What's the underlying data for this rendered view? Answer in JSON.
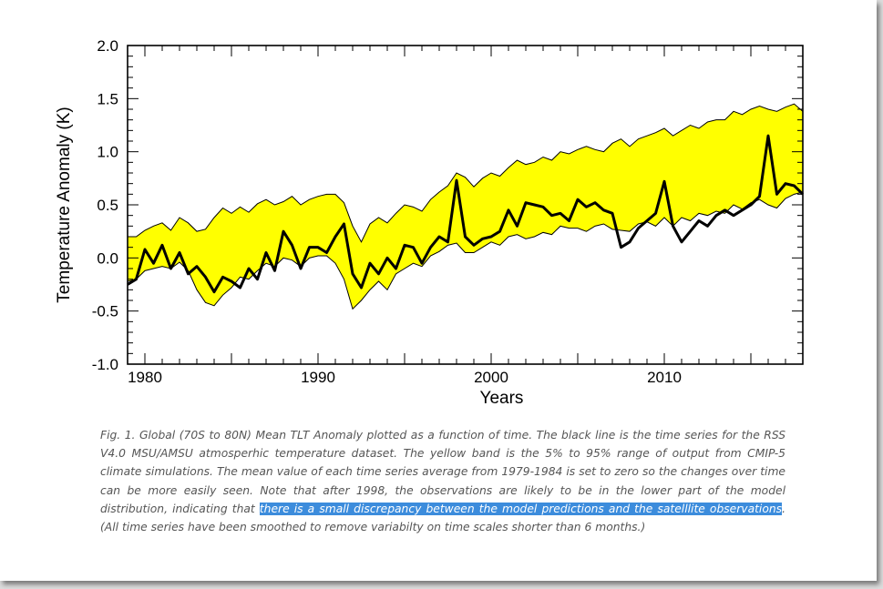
{
  "colors": {
    "band_fill": "#ffff00",
    "band_edge": "#000000",
    "observation_line": "#000000",
    "highlight": "#3c8cdc"
  },
  "caption": {
    "part1": "Fig. 1.  Global (70S to 80N) Mean TLT Anomaly plotted as a function of time.  The black line is the time series for the  RSS V4.0 MSU/AMSU atmosperhic temperature dataset.  The yellow band is the 5% to 95% range of output from CMIP-5 climate simulations.  The mean value of each time series average from 1979-1984 is set to zero so the changes over time can be more easily seen.  Note that after 1998, the observations are likely to be in the lower part of the model distribution, indicating that ",
    "highlight": "there is a small discrepancy between the model predictions and the satelllite observations",
    "part2": ".(All time series have been smoothed to remove variabilty on time scales shorter than 6 months.)"
  },
  "chart_data": {
    "type": "line",
    "xlabel": "Years",
    "ylabel": "Temperature Anomaly (K)",
    "xlim": [
      1979,
      2018
    ],
    "ylim": [
      -1.0,
      2.0
    ],
    "xticks": [
      "1980",
      "1990",
      "2000",
      "2010"
    ],
    "xtick_values": [
      1980,
      1990,
      2000,
      2010
    ],
    "yticks": [
      "-1.0",
      "-0.5",
      "0.0",
      "0.5",
      "1.0",
      "1.5",
      "2.0"
    ],
    "ytick_values": [
      -1.0,
      -0.5,
      0.0,
      0.5,
      1.0,
      1.5,
      2.0
    ],
    "grid": false,
    "series": [
      {
        "role": "band_upper",
        "x": [
          1979.0,
          1979.5,
          1980.0,
          1980.5,
          1981.0,
          1981.5,
          1982.0,
          1982.5,
          1983.0,
          1983.5,
          1984.0,
          1984.5,
          1985.0,
          1985.5,
          1986.0,
          1986.5,
          1987.0,
          1987.5,
          1988.0,
          1988.5,
          1989.0,
          1989.5,
          1990.0,
          1990.5,
          1991.0,
          1991.5,
          1992.0,
          1992.5,
          1993.0,
          1993.5,
          1994.0,
          1994.5,
          1995.0,
          1995.5,
          1996.0,
          1996.5,
          1997.0,
          1997.5,
          1998.0,
          1998.5,
          1999.0,
          1999.5,
          2000.0,
          2000.5,
          2001.0,
          2001.5,
          2002.0,
          2002.5,
          2003.0,
          2003.5,
          2004.0,
          2004.5,
          2005.0,
          2005.5,
          2006.0,
          2006.5,
          2007.0,
          2007.5,
          2008.0,
          2008.5,
          2009.0,
          2009.5,
          2010.0,
          2010.5,
          2011.0,
          2011.5,
          2012.0,
          2012.5,
          2013.0,
          2013.5,
          2014.0,
          2014.5,
          2015.0,
          2015.5,
          2016.0,
          2016.5,
          2017.0,
          2017.5,
          2018.0
        ],
        "y": [
          0.2,
          0.2,
          0.26,
          0.3,
          0.33,
          0.26,
          0.38,
          0.33,
          0.25,
          0.27,
          0.38,
          0.47,
          0.42,
          0.48,
          0.43,
          0.51,
          0.55,
          0.5,
          0.53,
          0.58,
          0.5,
          0.55,
          0.58,
          0.6,
          0.6,
          0.52,
          0.3,
          0.15,
          0.32,
          0.38,
          0.33,
          0.42,
          0.5,
          0.48,
          0.44,
          0.55,
          0.62,
          0.68,
          0.8,
          0.76,
          0.67,
          0.75,
          0.8,
          0.77,
          0.85,
          0.92,
          0.88,
          0.9,
          0.95,
          0.92,
          1.0,
          0.98,
          1.02,
          1.05,
          1.02,
          1.0,
          1.08,
          1.12,
          1.05,
          1.12,
          1.15,
          1.18,
          1.22,
          1.15,
          1.2,
          1.25,
          1.22,
          1.28,
          1.3,
          1.3,
          1.38,
          1.35,
          1.4,
          1.43,
          1.4,
          1.38,
          1.42,
          1.45,
          1.38
        ]
      },
      {
        "role": "band_lower",
        "x": [
          1979.0,
          1979.5,
          1980.0,
          1980.5,
          1981.0,
          1981.5,
          1982.0,
          1982.5,
          1983.0,
          1983.5,
          1984.0,
          1984.5,
          1985.0,
          1985.5,
          1986.0,
          1986.5,
          1987.0,
          1987.5,
          1988.0,
          1988.5,
          1989.0,
          1989.5,
          1990.0,
          1990.5,
          1991.0,
          1991.5,
          1992.0,
          1992.5,
          1993.0,
          1993.5,
          1994.0,
          1994.5,
          1995.0,
          1995.5,
          1996.0,
          1996.5,
          1997.0,
          1997.5,
          1998.0,
          1998.5,
          1999.0,
          1999.5,
          2000.0,
          2000.5,
          2001.0,
          2001.5,
          2002.0,
          2002.5,
          2003.0,
          2003.5,
          2004.0,
          2004.5,
          2005.0,
          2005.5,
          2006.0,
          2006.5,
          2007.0,
          2007.5,
          2008.0,
          2008.5,
          2009.0,
          2009.5,
          2010.0,
          2010.5,
          2011.0,
          2011.5,
          2012.0,
          2012.5,
          2013.0,
          2013.5,
          2014.0,
          2014.5,
          2015.0,
          2015.5,
          2016.0,
          2016.5,
          2017.0,
          2017.5,
          2018.0
        ],
        "y": [
          -0.22,
          -0.2,
          -0.12,
          -0.1,
          -0.08,
          -0.1,
          -0.04,
          -0.12,
          -0.3,
          -0.42,
          -0.45,
          -0.35,
          -0.28,
          -0.18,
          -0.2,
          -0.12,
          -0.05,
          -0.08,
          0.0,
          -0.02,
          -0.08,
          0.0,
          0.02,
          0.02,
          -0.05,
          -0.2,
          -0.48,
          -0.4,
          -0.3,
          -0.22,
          -0.3,
          -0.15,
          -0.1,
          -0.05,
          -0.08,
          0.02,
          0.06,
          0.12,
          0.14,
          0.05,
          0.05,
          0.1,
          0.15,
          0.12,
          0.2,
          0.22,
          0.18,
          0.2,
          0.24,
          0.22,
          0.3,
          0.28,
          0.28,
          0.25,
          0.3,
          0.32,
          0.27,
          0.26,
          0.25,
          0.32,
          0.34,
          0.3,
          0.38,
          0.3,
          0.38,
          0.35,
          0.42,
          0.4,
          0.44,
          0.42,
          0.5,
          0.46,
          0.52,
          0.55,
          0.5,
          0.47,
          0.56,
          0.6,
          0.62
        ]
      },
      {
        "role": "observation",
        "x": [
          1979.0,
          1979.5,
          1980.0,
          1980.5,
          1981.0,
          1981.5,
          1982.0,
          1982.5,
          1983.0,
          1983.5,
          1984.0,
          1984.5,
          1985.0,
          1985.5,
          1986.0,
          1986.5,
          1987.0,
          1987.5,
          1988.0,
          1988.5,
          1989.0,
          1989.5,
          1990.0,
          1990.5,
          1991.0,
          1991.5,
          1992.0,
          1992.5,
          1993.0,
          1993.5,
          1994.0,
          1994.5,
          1995.0,
          1995.5,
          1996.0,
          1996.5,
          1997.0,
          1997.5,
          1998.0,
          1998.5,
          1999.0,
          1999.5,
          2000.0,
          2000.5,
          2001.0,
          2001.5,
          2002.0,
          2002.5,
          2003.0,
          2003.5,
          2004.0,
          2004.5,
          2005.0,
          2005.5,
          2006.0,
          2006.5,
          2007.0,
          2007.5,
          2008.0,
          2008.5,
          2009.0,
          2009.5,
          2010.0,
          2010.5,
          2011.0,
          2011.5,
          2012.0,
          2012.5,
          2013.0,
          2013.5,
          2014.0,
          2014.5,
          2015.0,
          2015.5,
          2016.0,
          2016.5,
          2017.0,
          2017.5,
          2018.0
        ],
        "y": [
          -0.25,
          -0.2,
          0.08,
          -0.05,
          0.12,
          -0.1,
          0.05,
          -0.15,
          -0.08,
          -0.18,
          -0.32,
          -0.18,
          -0.22,
          -0.28,
          -0.1,
          -0.2,
          0.05,
          -0.12,
          0.25,
          0.12,
          -0.1,
          0.1,
          0.1,
          0.05,
          0.2,
          0.32,
          -0.15,
          -0.28,
          -0.05,
          -0.15,
          0.0,
          -0.1,
          0.12,
          0.1,
          -0.05,
          0.1,
          0.2,
          0.15,
          0.73,
          0.2,
          0.12,
          0.18,
          0.2,
          0.25,
          0.45,
          0.3,
          0.52,
          0.5,
          0.48,
          0.4,
          0.42,
          0.35,
          0.55,
          0.48,
          0.52,
          0.45,
          0.42,
          0.1,
          0.15,
          0.28,
          0.35,
          0.42,
          0.72,
          0.3,
          0.15,
          0.25,
          0.35,
          0.3,
          0.4,
          0.45,
          0.4,
          0.45,
          0.5,
          0.58,
          1.15,
          0.6,
          0.7,
          0.68,
          0.6
        ]
      }
    ]
  }
}
